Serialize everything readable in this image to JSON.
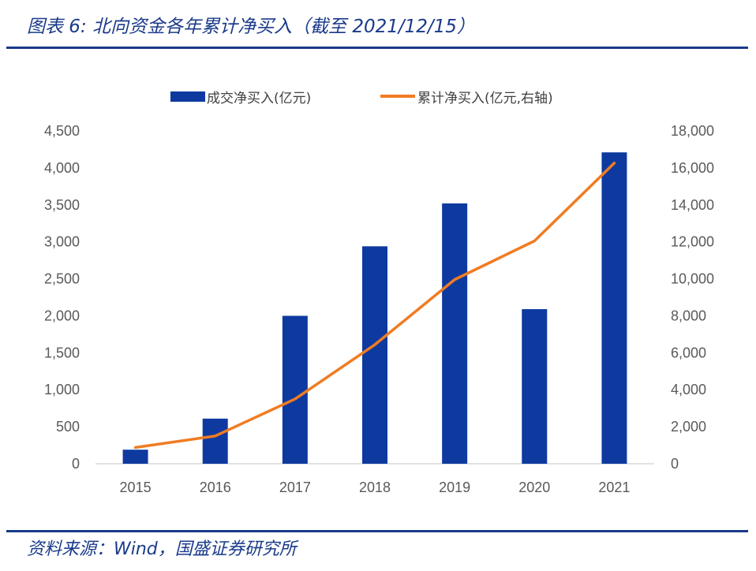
{
  "header": {
    "title": "图表 6:  北向资金各年累计净买入（截至 2021/12/15）"
  },
  "footer": {
    "source": "资料来源：Wind，国盛证券研究所"
  },
  "colors": {
    "bar": "#0e3aa0",
    "line": "#f07c22",
    "title": "#1a3a8a",
    "axis": "#d9d9d9"
  },
  "chart_data": {
    "type": "bar",
    "categories": [
      "2015",
      "2016",
      "2017",
      "2018",
      "2019",
      "2020",
      "2021"
    ],
    "series": [
      {
        "name": "成交净买入(亿元)",
        "type": "bar",
        "axis": "left",
        "values": [
          190,
          610,
          2000,
          2940,
          3520,
          2090,
          4210
        ]
      },
      {
        "name": "累计净买入(亿元,右轴)",
        "type": "line",
        "axis": "right",
        "values": [
          880,
          1500,
          3500,
          6440,
          9960,
          12050,
          16260
        ]
      }
    ],
    "y_left": {
      "min": 0,
      "max": 4500,
      "ticks": [
        "0",
        "500",
        "1,000",
        "1,500",
        "2,000",
        "2,500",
        "3,000",
        "3,500",
        "4,000",
        "4,500"
      ]
    },
    "y_right": {
      "min": 0,
      "max": 18000,
      "ticks": [
        "0",
        "2,000",
        "4,000",
        "6,000",
        "8,000",
        "10,000",
        "12,000",
        "14,000",
        "16,000",
        "18,000"
      ]
    },
    "grid": false,
    "legend": "top-center"
  }
}
